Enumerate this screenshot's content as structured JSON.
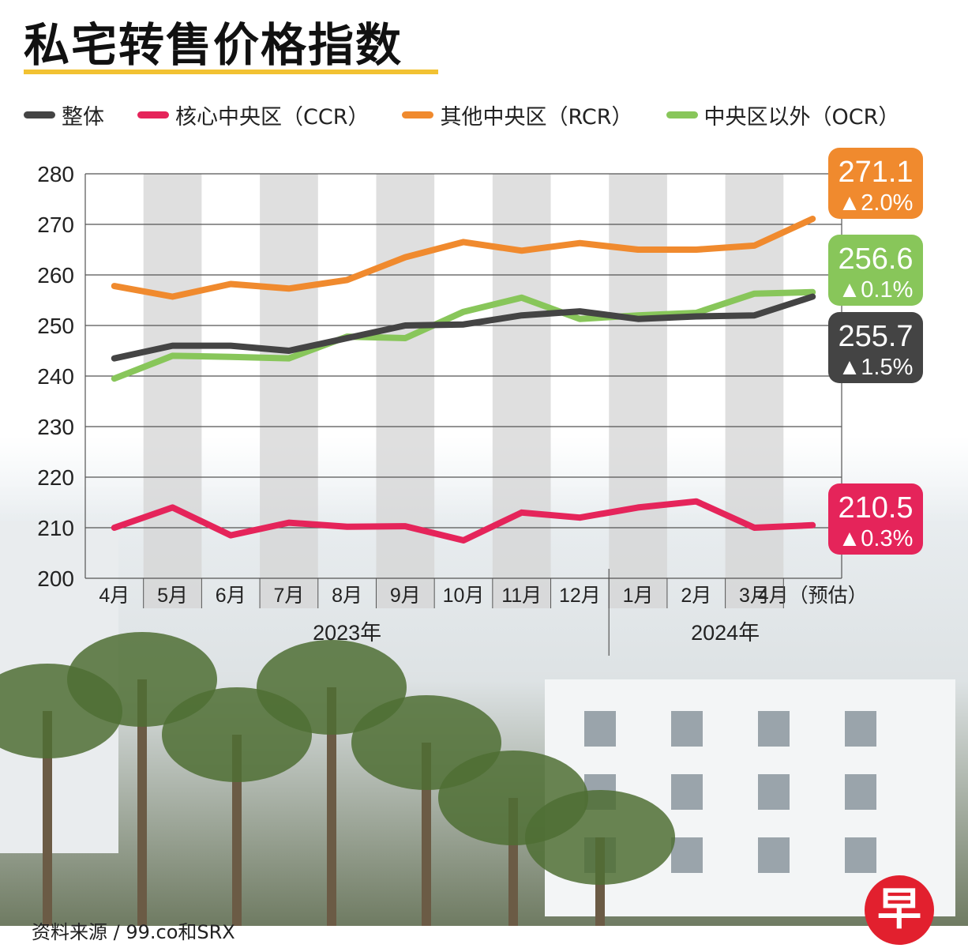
{
  "title": "私宅转售价格指数",
  "source": "资料来源 / 99.co和SRX",
  "logo_text": "早",
  "chart_data": {
    "type": "line",
    "title": "私宅转售价格指数",
    "categories": [
      "4月",
      "5月",
      "6月",
      "7月",
      "8月",
      "9月",
      "10月",
      "11月",
      "12月",
      "1月",
      "2月",
      "3月",
      "4月（预估）"
    ],
    "year_labels": [
      {
        "label": "2023年",
        "first_index": 0,
        "last_index": 8
      },
      {
        "label": "2024年",
        "first_index": 9,
        "last_index": 12
      }
    ],
    "ylim": [
      200,
      280
    ],
    "yticks": [
      200,
      210,
      220,
      230,
      240,
      250,
      260,
      270,
      280
    ],
    "grid": true,
    "legend_position": "top",
    "series": [
      {
        "name": "整体",
        "color": "#444444",
        "values": [
          243.5,
          246,
          246,
          245,
          247.5,
          250,
          250.2,
          252,
          252.8,
          251.3,
          251.8,
          252,
          255.7
        ],
        "end_value": "255.7",
        "end_change": "▲1.5%"
      },
      {
        "name": "核心中央区（CCR）",
        "color": "#e5245a",
        "values": [
          210,
          214,
          208.5,
          211,
          210.2,
          210.3,
          207.5,
          213,
          212,
          214,
          215.2,
          210,
          210.5
        ],
        "end_value": "210.5",
        "end_change": "▲0.3%"
      },
      {
        "name": "其他中央区（RCR）",
        "color": "#f08a2e",
        "values": [
          257.8,
          255.7,
          258.2,
          257.3,
          259,
          263.5,
          266.5,
          264.8,
          266.3,
          265,
          265,
          265.8,
          271.1
        ],
        "end_value": "271.1",
        "end_change": "▲2.0%"
      },
      {
        "name": "中央区以外（OCR）",
        "color": "#88c65a",
        "values": [
          239.5,
          244,
          243.8,
          243.5,
          247.8,
          247.5,
          252.7,
          255.5,
          251.3,
          252,
          252.5,
          256.3,
          256.6
        ],
        "end_value": "256.6",
        "end_change": "▲0.1%"
      }
    ]
  }
}
